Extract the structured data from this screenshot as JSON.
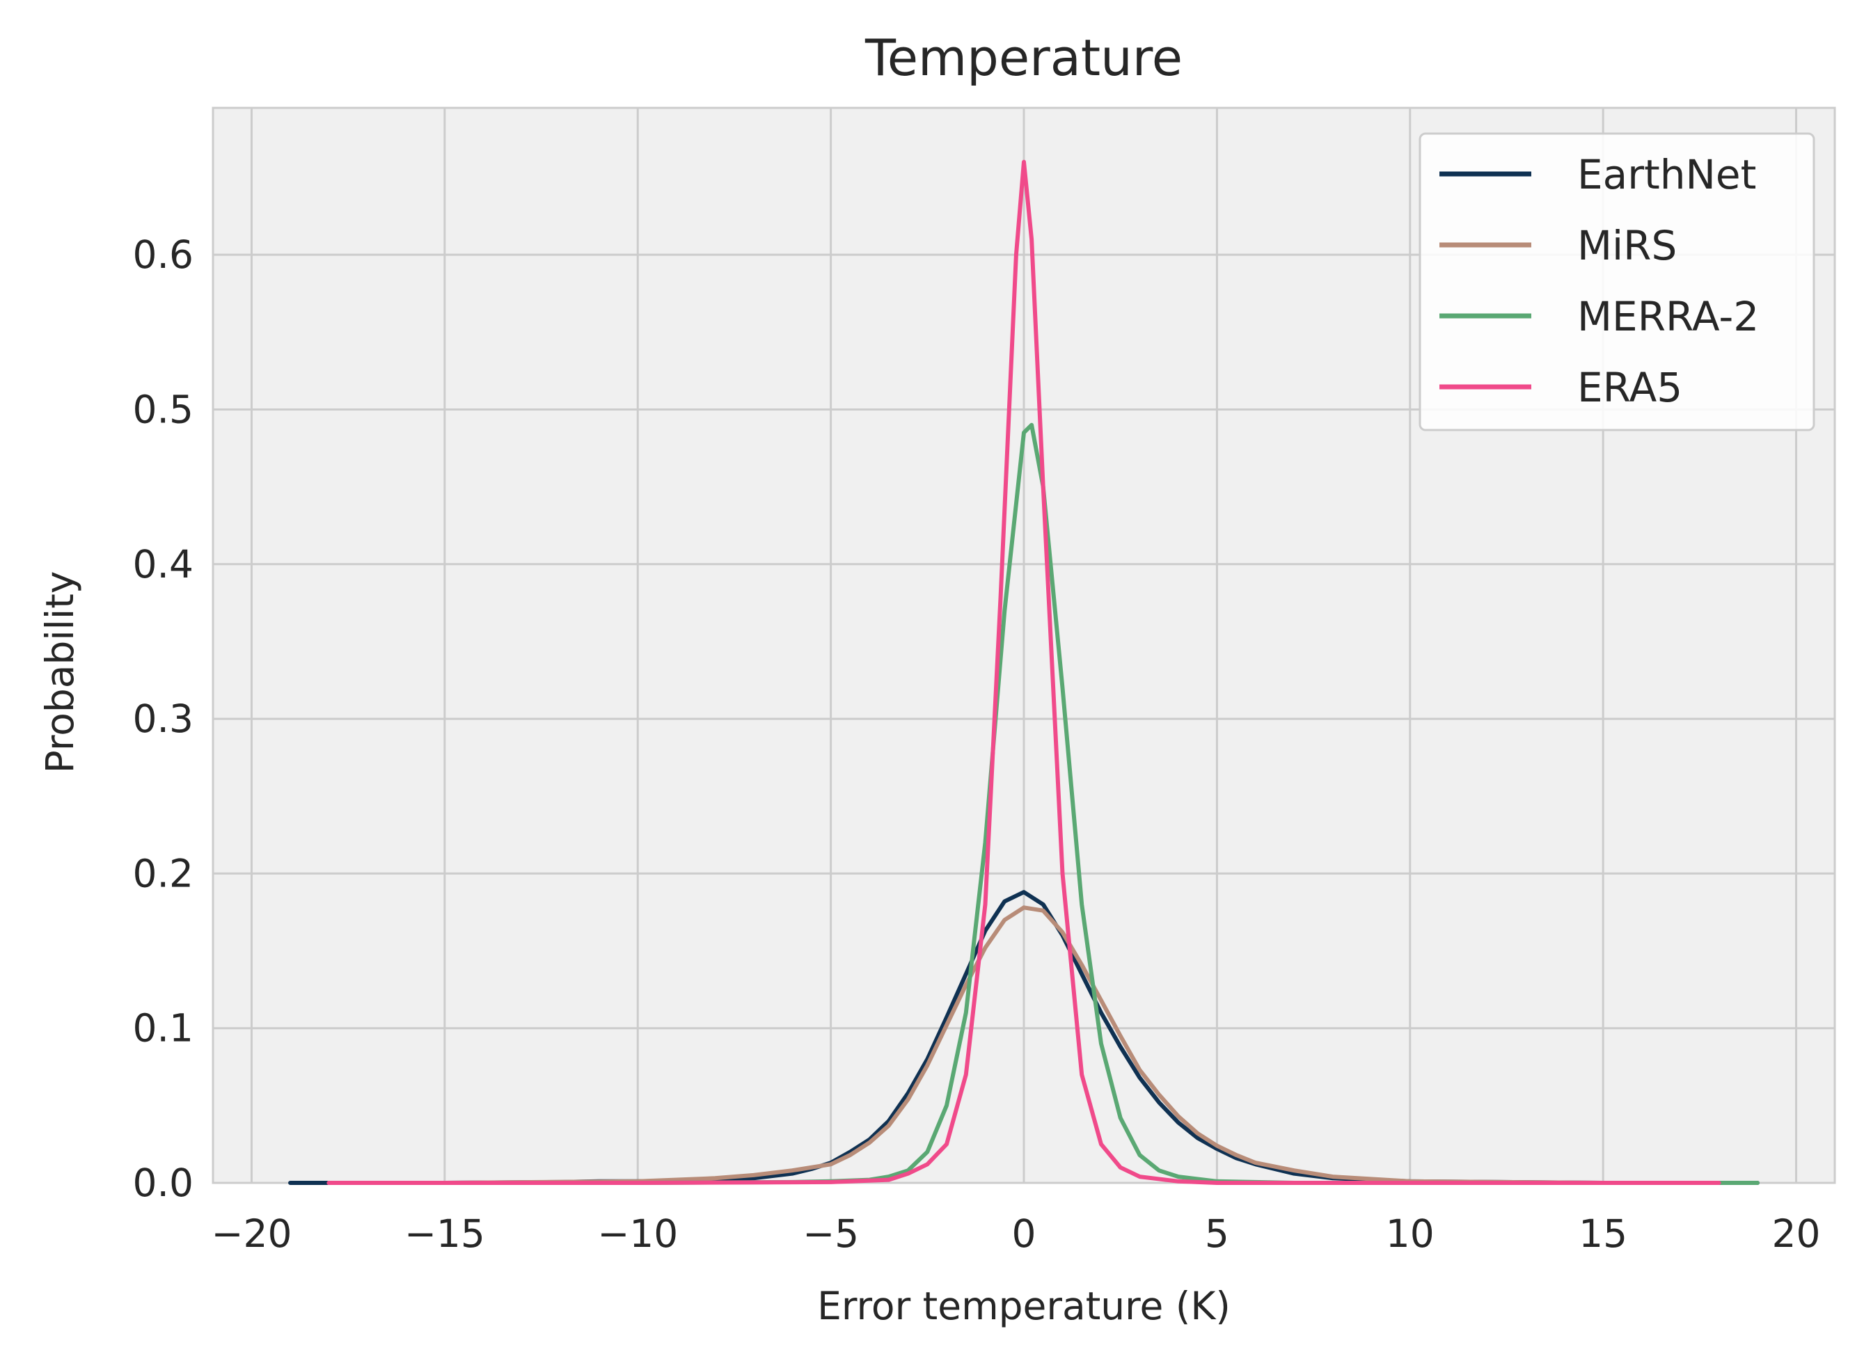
{
  "chart_data": {
    "type": "line",
    "title": "Temperature",
    "xlabel": "Error temperature (K)",
    "ylabel": "Probability",
    "xlim": [
      -21,
      21
    ],
    "ylim": [
      0,
      0.695
    ],
    "xticks": [
      -20,
      -15,
      -10,
      -5,
      0,
      5,
      10,
      15,
      20
    ],
    "xtick_labels": [
      "−20",
      "−15",
      "−10",
      "−5",
      "0",
      "5",
      "10",
      "15",
      "20"
    ],
    "yticks": [
      0.0,
      0.1,
      0.2,
      0.3,
      0.4,
      0.5,
      0.6
    ],
    "ytick_labels": [
      "0.0",
      "0.1",
      "0.2",
      "0.3",
      "0.4",
      "0.5",
      "0.6"
    ],
    "grid": true,
    "legend_position": "top-right",
    "background_color": "#f0f0f0",
    "grid_color": "#cccccc",
    "series": [
      {
        "name": "EarthNet",
        "color": "#0f3152",
        "points": [
          [
            -19,
            0.0
          ],
          [
            -15,
            0.0
          ],
          [
            -12,
            0.0005
          ],
          [
            -11,
            0.001
          ],
          [
            -10,
            0.001
          ],
          [
            -8,
            0.002
          ],
          [
            -7,
            0.003
          ],
          [
            -6,
            0.006
          ],
          [
            -5.5,
            0.009
          ],
          [
            -5,
            0.013
          ],
          [
            -4.5,
            0.02
          ],
          [
            -4,
            0.028
          ],
          [
            -3.5,
            0.04
          ],
          [
            -3,
            0.058
          ],
          [
            -2.5,
            0.08
          ],
          [
            -2,
            0.107
          ],
          [
            -1.5,
            0.135
          ],
          [
            -1,
            0.163
          ],
          [
            -0.5,
            0.182
          ],
          [
            0,
            0.188
          ],
          [
            0.5,
            0.18
          ],
          [
            1,
            0.16
          ],
          [
            1.5,
            0.135
          ],
          [
            2,
            0.11
          ],
          [
            2.5,
            0.088
          ],
          [
            3,
            0.068
          ],
          [
            3.5,
            0.052
          ],
          [
            4,
            0.039
          ],
          [
            4.5,
            0.029
          ],
          [
            5,
            0.022
          ],
          [
            5.5,
            0.016
          ],
          [
            6,
            0.012
          ],
          [
            7,
            0.006
          ],
          [
            8,
            0.003
          ],
          [
            10,
            0.001
          ],
          [
            15,
            0.0
          ],
          [
            19,
            0.0
          ]
        ]
      },
      {
        "name": "MiRS",
        "color": "#b88c78",
        "points": [
          [
            -18,
            0.0
          ],
          [
            -15,
            0.0
          ],
          [
            -10,
            0.001
          ],
          [
            -8,
            0.003
          ],
          [
            -7,
            0.005
          ],
          [
            -6,
            0.008
          ],
          [
            -5,
            0.012
          ],
          [
            -4.5,
            0.018
          ],
          [
            -4,
            0.026
          ],
          [
            -3.5,
            0.037
          ],
          [
            -3,
            0.054
          ],
          [
            -2.5,
            0.076
          ],
          [
            -2,
            0.102
          ],
          [
            -1.5,
            0.128
          ],
          [
            -1,
            0.152
          ],
          [
            -0.5,
            0.17
          ],
          [
            0,
            0.178
          ],
          [
            0.5,
            0.176
          ],
          [
            1,
            0.162
          ],
          [
            1.5,
            0.141
          ],
          [
            2,
            0.118
          ],
          [
            2.5,
            0.095
          ],
          [
            3,
            0.073
          ],
          [
            3.5,
            0.057
          ],
          [
            4,
            0.043
          ],
          [
            4.5,
            0.032
          ],
          [
            5,
            0.024
          ],
          [
            5.5,
            0.018
          ],
          [
            6,
            0.013
          ],
          [
            7,
            0.008
          ],
          [
            8,
            0.004
          ],
          [
            10,
            0.001
          ],
          [
            15,
            0.0
          ],
          [
            18,
            0.0
          ]
        ]
      },
      {
        "name": "MERRA-2",
        "color": "#5aa873",
        "points": [
          [
            -18,
            0.0
          ],
          [
            -10,
            0.0
          ],
          [
            -6,
            0.0005
          ],
          [
            -5,
            0.001
          ],
          [
            -4,
            0.002
          ],
          [
            -3.5,
            0.004
          ],
          [
            -3,
            0.008
          ],
          [
            -2.5,
            0.02
          ],
          [
            -2,
            0.05
          ],
          [
            -1.5,
            0.11
          ],
          [
            -1,
            0.22
          ],
          [
            -0.5,
            0.37
          ],
          [
            0,
            0.485
          ],
          [
            0.2,
            0.49
          ],
          [
            0.5,
            0.45
          ],
          [
            1,
            0.32
          ],
          [
            1.5,
            0.18
          ],
          [
            2,
            0.09
          ],
          [
            2.5,
            0.042
          ],
          [
            3,
            0.018
          ],
          [
            3.5,
            0.008
          ],
          [
            4,
            0.004
          ],
          [
            5,
            0.001
          ],
          [
            7,
            0.0
          ],
          [
            19,
            0.0
          ]
        ]
      },
      {
        "name": "ERA5",
        "color": "#f04a8a",
        "points": [
          [
            -18,
            0.0
          ],
          [
            -10,
            0.0
          ],
          [
            -5,
            0.0005
          ],
          [
            -3.5,
            0.002
          ],
          [
            -3,
            0.006
          ],
          [
            -2.5,
            0.012
          ],
          [
            -2,
            0.025
          ],
          [
            -1.5,
            0.07
          ],
          [
            -1,
            0.18
          ],
          [
            -0.6,
            0.38
          ],
          [
            -0.2,
            0.6
          ],
          [
            0,
            0.66
          ],
          [
            0.2,
            0.61
          ],
          [
            0.5,
            0.45
          ],
          [
            1,
            0.2
          ],
          [
            1.5,
            0.07
          ],
          [
            2,
            0.025
          ],
          [
            2.5,
            0.01
          ],
          [
            3,
            0.004
          ],
          [
            4,
            0.001
          ],
          [
            5,
            0.0
          ],
          [
            18,
            0.0
          ]
        ]
      }
    ]
  }
}
